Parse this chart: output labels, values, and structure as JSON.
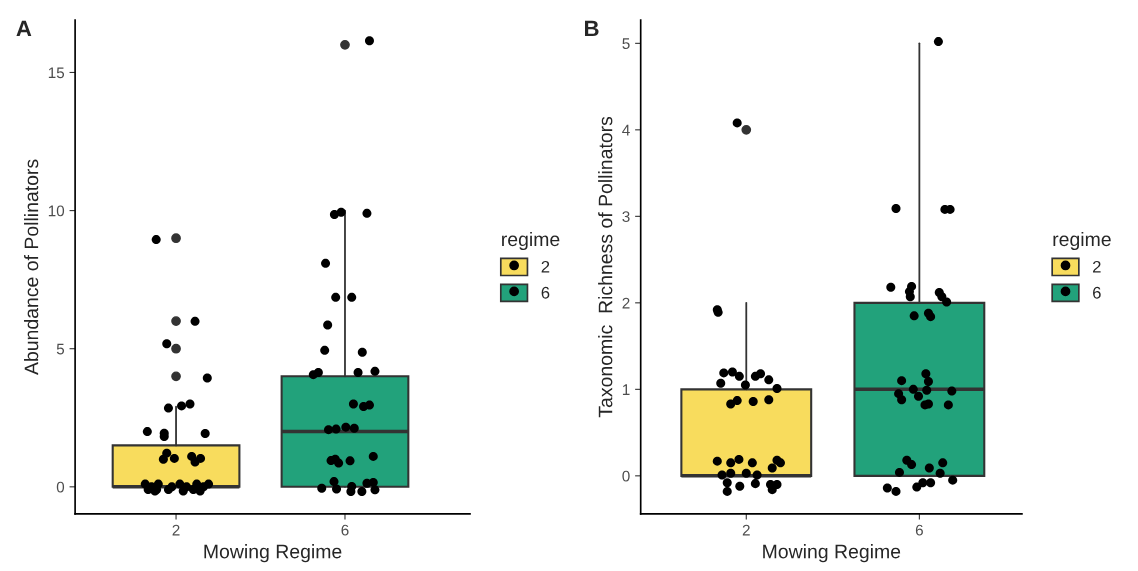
{
  "chart_data": [
    {
      "type": "box",
      "title": "A",
      "xlabel": "Mowing Regime",
      "ylabel": "Abundance of Pollinators",
      "legend_title": "regime",
      "legend": "right",
      "grid": false,
      "xlim": [
        -0.39,
        8.96
      ],
      "xticks": [
        2,
        6
      ],
      "ylim": [
        -0.98,
        16.9
      ],
      "yticks": [
        0,
        5,
        10,
        15
      ],
      "series": [
        {
          "name": "2",
          "color": "#f8dc5d",
          "x": [
            2
          ],
          "boxes": [
            {
              "low": 0,
              "q1": 0,
              "median": 0,
              "q3": 1.5,
              "high": 2.9,
              "outliers": [
                9,
                6,
                5,
                4
              ]
            }
          ]
        },
        {
          "name": "6",
          "color": "#22a27b",
          "x": [
            6
          ],
          "boxes": [
            {
              "low": 0,
              "q1": 0,
              "median": 2,
              "q3": 4,
              "high": 10,
              "outliers": [
                16
              ]
            }
          ]
        },
        {
          "type": "scatter",
          "color": "#000000",
          "marker": "circle",
          "x": [
            1.53,
            2.45,
            1.78,
            2.74,
            1.82,
            2.13,
            2.33,
            1.32,
            1.72,
            1.72,
            2.69,
            1.78,
            1.7,
            1.96,
            2.37,
            2.58,
            2.45,
            1.27,
            1.34,
            1.42,
            1.5,
            1.58,
            1.82,
            1.9,
            2.09,
            2.17,
            2.25,
            2.41,
            2.49,
            2.57,
            2.65,
            2.77,
            1.54,
            6.58,
            5.75,
            5.91,
            6.52,
            5.54,
            5.78,
            6.16,
            5.59,
            5.52,
            6.41,
            5.25,
            5.37,
            6.31,
            6.71,
            6.2,
            6.44,
            6.58,
            5.61,
            5.79,
            6.02,
            6.22,
            5.67,
            5.77,
            5.85,
            6.12,
            6.67,
            5.45,
            5.74,
            5.8,
            6.16,
            6.14,
            6.4,
            6.52,
            6.67,
            6.71
          ],
          "values": [
            8.95,
            5.99,
            5.18,
            3.94,
            2.85,
            2.93,
            3.0,
            2.0,
            1.94,
            1.82,
            1.93,
            1.22,
            1.0,
            1.03,
            1.1,
            1.03,
            0.9,
            0.1,
            -0.1,
            0,
            -0.15,
            0.1,
            -0.1,
            0,
            0.1,
            -0.15,
            0,
            -0.1,
            0.1,
            -0.15,
            0,
            0.1,
            -0.1,
            16.15,
            9.86,
            9.94,
            9.9,
            8.09,
            6.86,
            6.86,
            5.86,
            4.94,
            4.87,
            4.06,
            4.14,
            4.14,
            4.18,
            3.0,
            2.91,
            2.96,
            2.07,
            2.09,
            2.16,
            2.12,
            0.95,
            1.0,
            0.86,
            0.94,
            1.1,
            -0.05,
            0.19,
            -0.08,
            0.01,
            -0.17,
            -0.17,
            0.13,
            0.16,
            -0.11
          ]
        }
      ]
    },
    {
      "type": "box",
      "title": "B",
      "xlabel": "Mowing Regime",
      "ylabel": "Taxonomic  Richness of Pollinators",
      "legend_title": "regime",
      "legend": "right",
      "grid": false,
      "xlim": [
        -0.44,
        8.37
      ],
      "xticks": [
        2,
        6
      ],
      "ylim": [
        -0.44,
        5.27
      ],
      "yticks": [
        0,
        1,
        2,
        3,
        4,
        5
      ],
      "series": [
        {
          "name": "2",
          "color": "#f8dc5d",
          "x": [
            2
          ],
          "boxes": [
            {
              "low": 0,
              "q1": 0,
              "median": 0,
              "q3": 1,
              "high": 2,
              "outliers": [
                4
              ]
            }
          ]
        },
        {
          "name": "6",
          "color": "#22a27b",
          "x": [
            6
          ],
          "boxes": [
            {
              "low": 0,
              "q1": 0,
              "median": 1,
              "q3": 2,
              "high": 5
            }
          ]
        },
        {
          "type": "scatter",
          "color": "#000000",
          "marker": "circle",
          "x": [
            1.79,
            1.33,
            1.35,
            1.48,
            1.68,
            1.84,
            1.41,
            1.98,
            2.21,
            2.33,
            2.52,
            2.71,
            1.64,
            1.79,
            2.16,
            2.52,
            1.33,
            1.64,
            1.83,
            2.14,
            2.71,
            2.79,
            1.44,
            2.0,
            2.25,
            2.6,
            1.56,
            1.85,
            2.21,
            2.56,
            2.71,
            1.56,
            2.6,
            1.64,
            6.44,
            5.46,
            6.59,
            6.71,
            5.34,
            5.82,
            5.77,
            5.79,
            6.46,
            6.52,
            6.63,
            5.88,
            6.21,
            6.26,
            6.15,
            6.21,
            5.59,
            5.86,
            5.98,
            5.52,
            5.59,
            6.17,
            6.75,
            6.13,
            6.21,
            6.67,
            5.71,
            5.82,
            5.54,
            6.23,
            6.54,
            6.48,
            6.77,
            5.26,
            5.46,
            5.94,
            6.08,
            6.26
          ],
          "values": [
            4.08,
            1.92,
            1.89,
            1.19,
            1.2,
            1.15,
            1.07,
            1.05,
            1.15,
            1.18,
            1.11,
            1.01,
            0.83,
            0.87,
            0.86,
            0.88,
            0.17,
            0.15,
            0.19,
            0.15,
            0.18,
            0.15,
            0.01,
            0.03,
            0.01,
            0.09,
            -0.08,
            -0.12,
            -0.09,
            -0.1,
            -0.1,
            -0.18,
            -0.16,
            0.03,
            5.02,
            3.09,
            3.08,
            3.08,
            2.18,
            2.19,
            2.13,
            2.07,
            2.12,
            2.07,
            2.01,
            1.85,
            1.88,
            1.84,
            1.18,
            1.09,
            1.1,
            1.0,
            0.92,
            0.95,
            0.88,
            0.99,
            0.98,
            0.82,
            0.83,
            0.82,
            0.18,
            0.13,
            0.04,
            0.09,
            0.15,
            0.03,
            -0.05,
            -0.14,
            -0.18,
            -0.13,
            -0.08,
            -0.08
          ]
        }
      ]
    }
  ]
}
